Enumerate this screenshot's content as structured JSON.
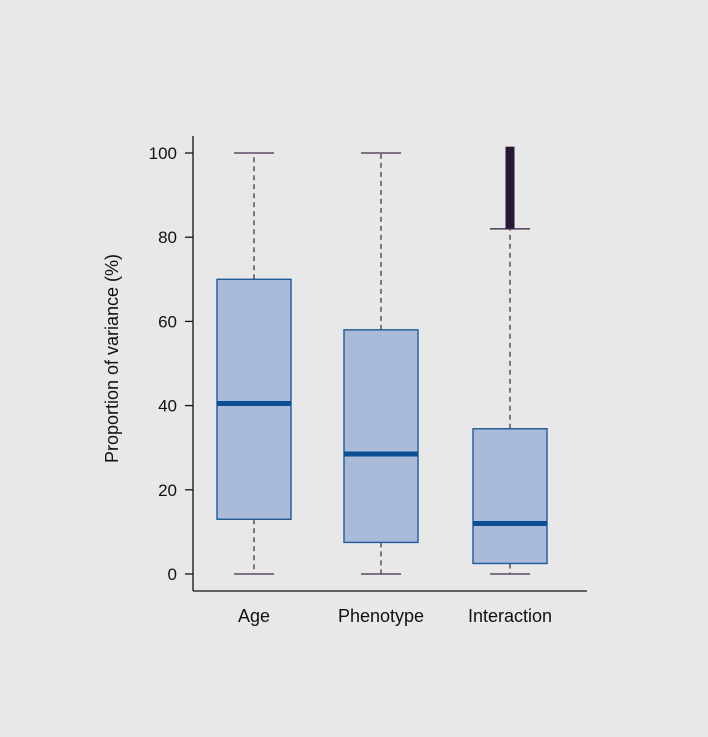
{
  "colors": {
    "background": "#e8e8e8",
    "box_fill": "#a9bbd9",
    "box_stroke": "#1f5b9a",
    "median": "#0a4e94",
    "whisker": "#5a4a63",
    "outlier": "#2a1838",
    "axis": "#111111"
  },
  "chart_data": {
    "type": "box",
    "ylabel": "Proportion of variance (%)",
    "ylim": [
      0,
      100
    ],
    "yticks": [
      0,
      20,
      40,
      60,
      80,
      100
    ],
    "grid": false,
    "legend": "none",
    "categories": [
      "Age",
      "Phenotype",
      "Interaction"
    ],
    "boxes": [
      {
        "category": "Age",
        "whisker_low": 0,
        "q1": 13,
        "median": 40.5,
        "q3": 70,
        "whisker_high": 100,
        "outlier_range": null
      },
      {
        "category": "Phenotype",
        "whisker_low": 0,
        "q1": 7.5,
        "median": 28.5,
        "q3": 58,
        "whisker_high": 100,
        "outlier_range": null
      },
      {
        "category": "Interaction",
        "whisker_low": 0,
        "q1": 2.5,
        "median": 12,
        "q3": 34.5,
        "whisker_high": 82,
        "outlier_range": [
          82,
          101.5
        ]
      }
    ]
  }
}
